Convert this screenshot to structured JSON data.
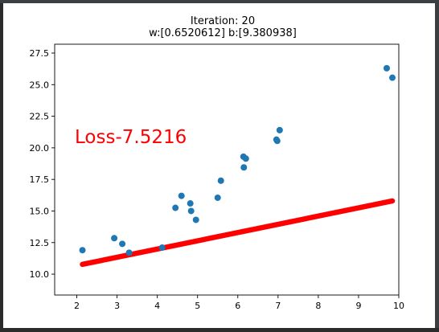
{
  "colors": {
    "points": "#1f77b4",
    "fit_line": "#ff0000",
    "loss_text": "#ff0000"
  },
  "chart_data": {
    "type": "scatter",
    "title": "Iteration: 20",
    "subtitle": "w:[0.6520612] b:[9.380938]",
    "annotation": "Loss-7.5216",
    "xlim": [
      1.45,
      10.0
    ],
    "ylim": [
      8.35,
      28.2
    ],
    "xticks": [
      2,
      3,
      4,
      5,
      6,
      7,
      8,
      9,
      10
    ],
    "yticks": [
      10.0,
      12.5,
      15.0,
      17.5,
      20.0,
      22.5,
      25.0,
      27.5
    ],
    "xtick_labels": [
      "2",
      "3",
      "4",
      "5",
      "6",
      "7",
      "8",
      "9",
      "10"
    ],
    "ytick_labels": [
      "10.0",
      "12.5",
      "15.0",
      "17.5",
      "20.0",
      "22.5",
      "25.0",
      "27.5"
    ],
    "grid": false,
    "series": [
      {
        "type": "scatter",
        "x": [
          2.14,
          2.93,
          3.13,
          3.3,
          4.12,
          4.45,
          4.6,
          4.82,
          4.84,
          4.96,
          5.5,
          5.58,
          6.14,
          6.15,
          6.2,
          6.96,
          6.98,
          7.04,
          9.7,
          9.84
        ],
        "y": [
          11.9,
          12.85,
          12.4,
          11.7,
          12.1,
          15.25,
          16.2,
          15.6,
          15.0,
          14.3,
          16.05,
          17.4,
          19.3,
          18.45,
          19.15,
          20.65,
          20.55,
          21.4,
          26.3,
          25.55
        ]
      },
      {
        "type": "line",
        "x": [
          2.14,
          9.84
        ],
        "y": [
          10.776,
          15.797
        ],
        "fitted": true
      }
    ]
  }
}
